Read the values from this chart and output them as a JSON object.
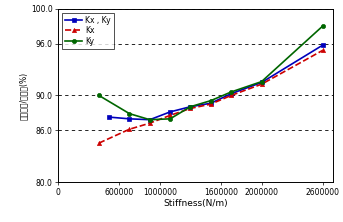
{
  "title": "",
  "xlabel": "Stiffness(N/m)",
  "ylabel": "비선형비/간략비(%)",
  "xlim": [
    0,
    2700000
  ],
  "ylim": [
    80.0,
    100.0
  ],
  "yticks": [
    80.0,
    86.0,
    90.0,
    96.0,
    100.0
  ],
  "ytick_labels": [
    "80.0",
    "86.0",
    "90.0",
    "96.0",
    "100.0"
  ],
  "xticks": [
    0,
    600000,
    1000000,
    1600000,
    2000000,
    2600000
  ],
  "xtick_labels": [
    "0",
    "600000",
    "1000000",
    "1600000",
    "2000000",
    "2600000"
  ],
  "series": [
    {
      "label": "Kx , Ky",
      "color": "#0000bb",
      "marker": "s",
      "markersize": 3,
      "linestyle": "-",
      "linewidth": 1.2,
      "x": [
        500000,
        700000,
        900000,
        1100000,
        1300000,
        1500000,
        1700000,
        2000000,
        2600000
      ],
      "y": [
        87.5,
        87.3,
        87.2,
        88.1,
        88.7,
        89.1,
        90.2,
        91.5,
        95.8
      ]
    },
    {
      "label": "Kx",
      "color": "#cc0000",
      "marker": "^",
      "markersize": 3,
      "linestyle": "--",
      "linewidth": 1.2,
      "x": [
        400000,
        700000,
        900000,
        1100000,
        1300000,
        1500000,
        1700000,
        2000000,
        2600000
      ],
      "y": [
        84.5,
        86.1,
        86.8,
        87.7,
        88.5,
        89.0,
        90.0,
        91.3,
        95.2
      ]
    },
    {
      "label": "Ky",
      "color": "#006600",
      "marker": "o",
      "markersize": 3,
      "linestyle": "-",
      "linewidth": 1.2,
      "x": [
        400000,
        700000,
        900000,
        1100000,
        1300000,
        1500000,
        1700000,
        2000000,
        2600000
      ],
      "y": [
        90.0,
        87.9,
        87.2,
        87.3,
        88.7,
        89.4,
        90.4,
        91.6,
        98.0
      ]
    }
  ],
  "legend_loc": "upper left",
  "background_color": "#ffffff",
  "figsize": [
    3.43,
    2.22
  ],
  "dpi": 100
}
